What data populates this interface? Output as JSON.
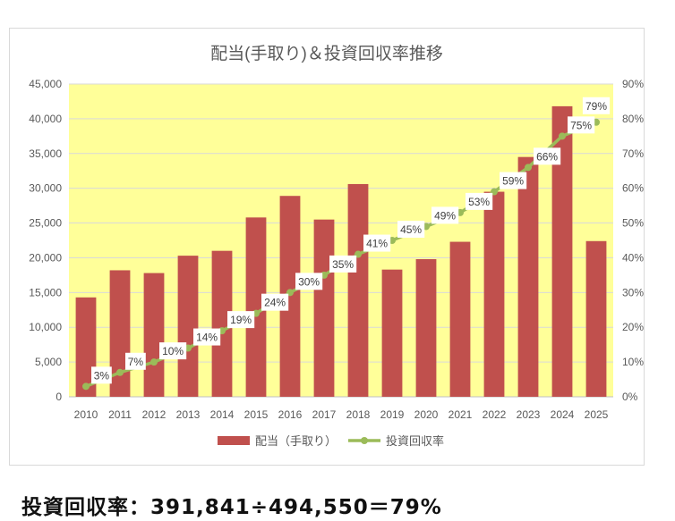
{
  "chart_data": {
    "type": "bar",
    "title": "配当(手取り)＆投資回収率推移",
    "categories": [
      "2010",
      "2011",
      "2012",
      "2013",
      "2014",
      "2015",
      "2016",
      "2017",
      "2018",
      "2019",
      "2020",
      "2021",
      "2022",
      "2023",
      "2024",
      "2025"
    ],
    "series": [
      {
        "name": "配当（手取り）",
        "type": "bar",
        "axis": "left",
        "color": "#c0504d",
        "values": [
          14300,
          18200,
          17800,
          20300,
          21000,
          25800,
          28900,
          25500,
          30600,
          18300,
          19800,
          22300,
          29500,
          34500,
          41800,
          22400
        ]
      },
      {
        "name": "投資回収率",
        "type": "line",
        "axis": "right",
        "color": "#9bbb59",
        "values": [
          3,
          7,
          10,
          14,
          19,
          24,
          30,
          35,
          41,
          45,
          49,
          53,
          59,
          66,
          75,
          79
        ],
        "labels": [
          "3%",
          "7%",
          "10%",
          "14%",
          "19%",
          "24%",
          "30%",
          "35%",
          "41%",
          "45%",
          "49%",
          "53%",
          "59%",
          "66%",
          "75%",
          "79%"
        ]
      }
    ],
    "y_left": {
      "min": 0,
      "max": 45000,
      "step": 5000,
      "ticks": [
        "0",
        "5,000",
        "10,000",
        "15,000",
        "20,000",
        "25,000",
        "30,000",
        "35,000",
        "40,000",
        "45,000"
      ]
    },
    "y_right": {
      "min": 0,
      "max": 90,
      "step": 10,
      "ticks": [
        "0%",
        "10%",
        "20%",
        "30%",
        "40%",
        "50%",
        "60%",
        "70%",
        "80%",
        "90%"
      ]
    },
    "plot_background": "#ffff99",
    "grid": true,
    "legend": "bottom"
  },
  "caption": "投資回収率：391,841÷494,550＝79%"
}
